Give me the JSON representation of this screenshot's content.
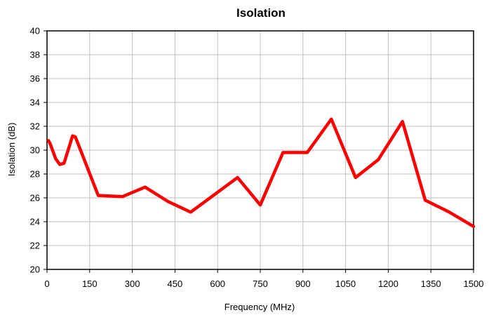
{
  "chart_data": {
    "type": "line",
    "title": "Isolation",
    "xlabel": "Frequency (MHz)",
    "ylabel": "Isolation (dB)",
    "xlim": [
      0,
      1500
    ],
    "ylim": [
      20,
      40
    ],
    "xticks": [
      0,
      150,
      300,
      450,
      600,
      750,
      900,
      1050,
      1200,
      1350,
      1500
    ],
    "yticks": [
      20,
      22,
      24,
      26,
      28,
      30,
      32,
      34,
      36,
      38,
      40
    ],
    "grid": "on",
    "legend": "none",
    "series": [
      {
        "color": "#ff0000",
        "x": [
          5,
          10,
          30,
          45,
          60,
          90,
          100,
          180,
          265,
          345,
          425,
          505,
          585,
          670,
          750,
          830,
          915,
          1000,
          1085,
          1165,
          1250,
          1330,
          1415,
          1500
        ],
        "y": [
          30.8,
          30.6,
          29.3,
          28.8,
          28.9,
          31.2,
          31.1,
          26.2,
          26.1,
          26.9,
          25.7,
          24.8,
          26.2,
          27.7,
          25.4,
          29.8,
          29.8,
          32.6,
          27.7,
          29.2,
          32.4,
          25.8,
          24.8,
          23.6
        ]
      }
    ]
  }
}
